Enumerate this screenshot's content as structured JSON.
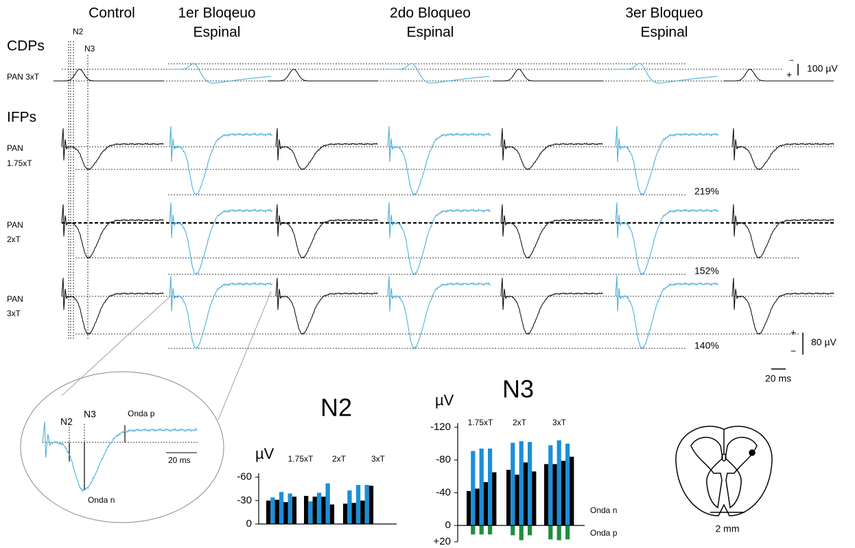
{
  "figure": {
    "columns": [
      [
        "Control"
      ],
      [
        "1er Bloqeuo",
        "Espinal"
      ],
      [
        "2do Bloqueo",
        "Espinal"
      ],
      [
        "3er Bloqueo",
        "Espinal"
      ]
    ],
    "sections": [
      "CDPs",
      "IFPs"
    ],
    "markers": [
      "N2",
      "N3"
    ],
    "rows": [
      [
        "PAN 3xT"
      ],
      [
        "PAN",
        "1.75xT"
      ],
      [
        "PAN",
        "2xT"
      ],
      [
        "PAN",
        "3xT"
      ]
    ],
    "percentages": [
      "219%",
      "152%",
      "140%"
    ],
    "scales": {
      "cdp": "100 µV",
      "ifp": "80 µV",
      "time": "20 ms",
      "minus": "−",
      "plus": "+"
    },
    "inset": {
      "n2": "N2",
      "n3": "N3",
      "onda_p": "Onda p",
      "onda_n": "Onda n",
      "time": "20 ms"
    },
    "anatomy_scale": "2 mm"
  },
  "chart_data": [
    {
      "type": "bar",
      "title": "N2",
      "ylabel": "µV",
      "categories": [
        "1.75xT",
        "2xT",
        "3xT"
      ],
      "ylim": [
        0,
        -65
      ],
      "yticks": [
        0,
        -30,
        -60
      ],
      "series": [
        {
          "color": "#000000",
          "values": [
            -30,
            -36,
            -26
          ]
        },
        {
          "color": "#1b8fd8",
          "values": [
            -34,
            -29,
            -43
          ]
        },
        {
          "color": "#000000",
          "values": [
            -31,
            -35,
            -27
          ]
        },
        {
          "color": "#1b8fd8",
          "values": [
            -41,
            -40,
            -50
          ]
        },
        {
          "color": "#000000",
          "values": [
            -28,
            -35,
            -30
          ]
        },
        {
          "color": "#1b8fd8",
          "values": [
            -39,
            -52,
            -50
          ]
        },
        {
          "color": "#000000",
          "values": [
            -35,
            -25,
            -49
          ]
        }
      ]
    },
    {
      "type": "bar",
      "title": "N3",
      "ylabel": "µV",
      "categories": [
        "1.75xT",
        "2xT",
        "3xT"
      ],
      "ylim": [
        20,
        -125
      ],
      "yticks": [
        {
          "value": 20,
          "label": "+20"
        },
        0,
        -40,
        -80,
        -120
      ],
      "annotations": [
        "Onda n",
        "Onda p"
      ],
      "series": [
        {
          "color": "#000000",
          "values": [
            -42,
            -68,
            -75
          ]
        },
        {
          "color": "#1b8fd8",
          "values": [
            -91,
            -101,
            -98
          ]
        },
        {
          "color": "#000000",
          "values": [
            -45,
            -62,
            -75
          ]
        },
        {
          "color": "#1b8fd8",
          "values": [
            -94,
            -103,
            -104
          ]
        },
        {
          "color": "#000000",
          "values": [
            -53,
            -77,
            -79
          ]
        },
        {
          "color": "#1b8fd8",
          "values": [
            -94,
            -102,
            -100
          ]
        },
        {
          "color": "#000000",
          "values": [
            -65,
            -66,
            -84
          ]
        },
        {
          "color": "#1e8f3c",
          "values": [
            11,
            12,
            17
          ]
        },
        {
          "color": "#1e8f3c",
          "values": [
            11,
            18,
            18
          ]
        },
        {
          "color": "#1e8f3c",
          "values": [
            11,
            12,
            17
          ]
        }
      ]
    }
  ]
}
